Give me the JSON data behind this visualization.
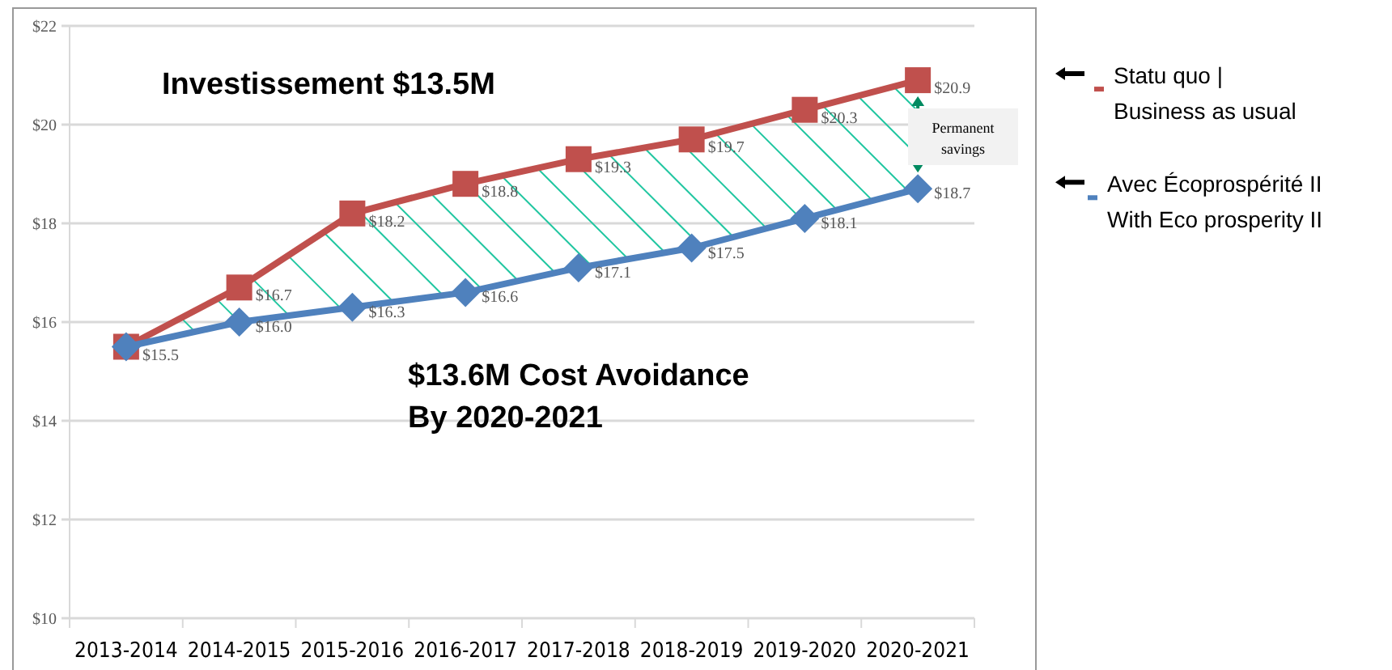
{
  "chart_data": {
    "type": "line",
    "categories": [
      "2013-2014",
      "2014-2015",
      "2015-2016",
      "2016-2017",
      "2017-2018",
      "2018-2019",
      "2019-2020",
      "2020-2021"
    ],
    "series": [
      {
        "name": "Statu quo |\nBusiness as usual",
        "color": "#c0504d",
        "marker": "square",
        "values": [
          15.5,
          16.7,
          18.2,
          18.8,
          19.3,
          19.7,
          20.3,
          20.9
        ],
        "value_labels": [
          "$15.5",
          "$16.7",
          "$18.2",
          "$18.8",
          "$19.3",
          "$19.7",
          "$20.3",
          "$20.9"
        ]
      },
      {
        "name": "Avec Écoprospérité II\nWith Eco prosperity II",
        "color": "#4f81bd",
        "marker": "diamond",
        "values": [
          15.5,
          16.0,
          16.3,
          16.6,
          17.1,
          17.5,
          18.1,
          18.7
        ],
        "value_labels": [
          null,
          "$16.0",
          "$16.3",
          "$16.6",
          "$17.1",
          "$17.5",
          "$18.1",
          "$18.7"
        ]
      }
    ],
    "ylim": [
      10,
      22
    ],
    "yticks": [
      {
        "value": 10,
        "label": "$10"
      },
      {
        "value": 12,
        "label": "$12"
      },
      {
        "value": 14,
        "label": "$14"
      },
      {
        "value": 16,
        "label": "$16"
      },
      {
        "value": 18,
        "label": "$18"
      },
      {
        "value": 20,
        "label": "$20"
      },
      {
        "value": 22,
        "label": "$22"
      }
    ],
    "grid": "y",
    "legend": "right",
    "line_style": "solid",
    "annotations": [
      "Investissement $13.5M",
      "$13.6M Cost Avoidance\nBy 2020-2021",
      "Permanent\nsavings"
    ]
  }
}
